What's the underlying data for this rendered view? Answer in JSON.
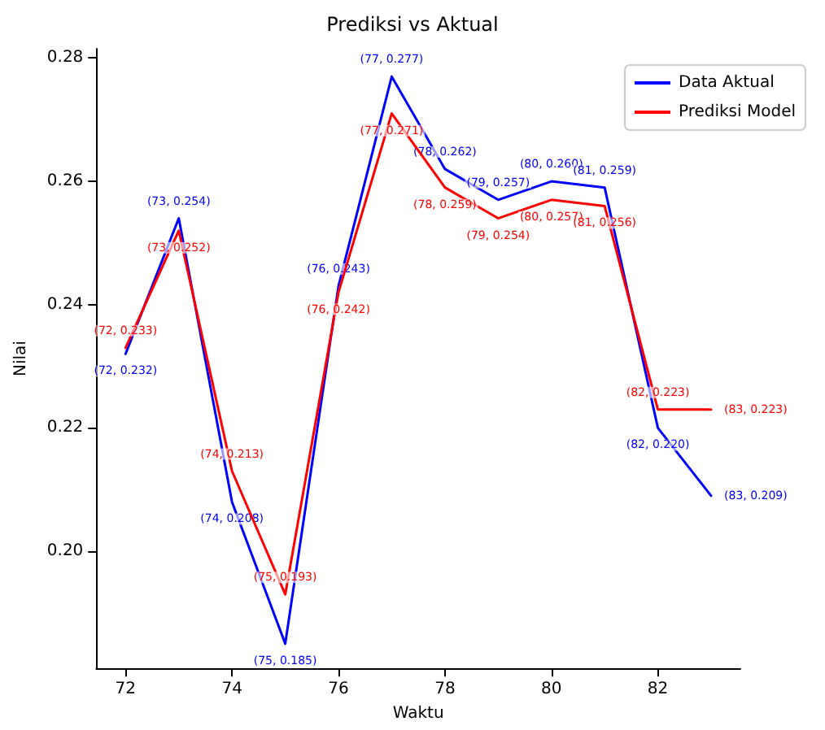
{
  "chart_data": {
    "type": "line",
    "title": "Prediksi vs Aktual",
    "xlabel": "Waktu",
    "ylabel": "Nilai",
    "x": [
      72,
      73,
      74,
      75,
      76,
      77,
      78,
      79,
      80,
      81,
      82,
      83
    ],
    "series": [
      {
        "name": "Data Aktual",
        "color": "#0000ff",
        "values": [
          0.232,
          0.254,
          0.208,
          0.185,
          0.243,
          0.277,
          0.262,
          0.257,
          0.26,
          0.259,
          0.22,
          0.209
        ],
        "value_labels": [
          "(72, 0.232)",
          "(73, 0.254)",
          "(74, 0.208)",
          "(75, 0.185)",
          "(76, 0.243)",
          "(77, 0.277)",
          "(78, 0.262)",
          "(79, 0.257)",
          "(80, 0.260)",
          "(81, 0.259)",
          "(82, 0.220)",
          "(83, 0.209)"
        ]
      },
      {
        "name": "Prediksi Model",
        "color": "#ff0000",
        "values": [
          0.233,
          0.252,
          0.213,
          0.193,
          0.242,
          0.271,
          0.259,
          0.254,
          0.257,
          0.256,
          0.223,
          0.223
        ],
        "value_labels": [
          "(72, 0.233)",
          "(73, 0.252)",
          "(74, 0.213)",
          "(75, 0.193)",
          "(76, 0.242)",
          "(77, 0.271)",
          "(78, 0.259)",
          "(79, 0.254)",
          "(80, 0.257)",
          "(81, 0.256)",
          "(82, 0.223)",
          "(83, 0.223)"
        ]
      }
    ],
    "xlim": [
      71.45,
      83.55
    ],
    "xticks": [
      72,
      74,
      76,
      78,
      80,
      82
    ],
    "ylim": [
      0.181,
      0.2815
    ],
    "yticks": [
      {
        "value": 0.2,
        "label": "0.20"
      },
      {
        "value": 0.22,
        "label": "0.22"
      },
      {
        "value": 0.24,
        "label": "0.24"
      },
      {
        "value": 0.26,
        "label": "0.26"
      },
      {
        "value": 0.28,
        "label": "0.28"
      }
    ],
    "grid": false,
    "legend": "top right",
    "marker": "none",
    "line_style": "solid"
  }
}
